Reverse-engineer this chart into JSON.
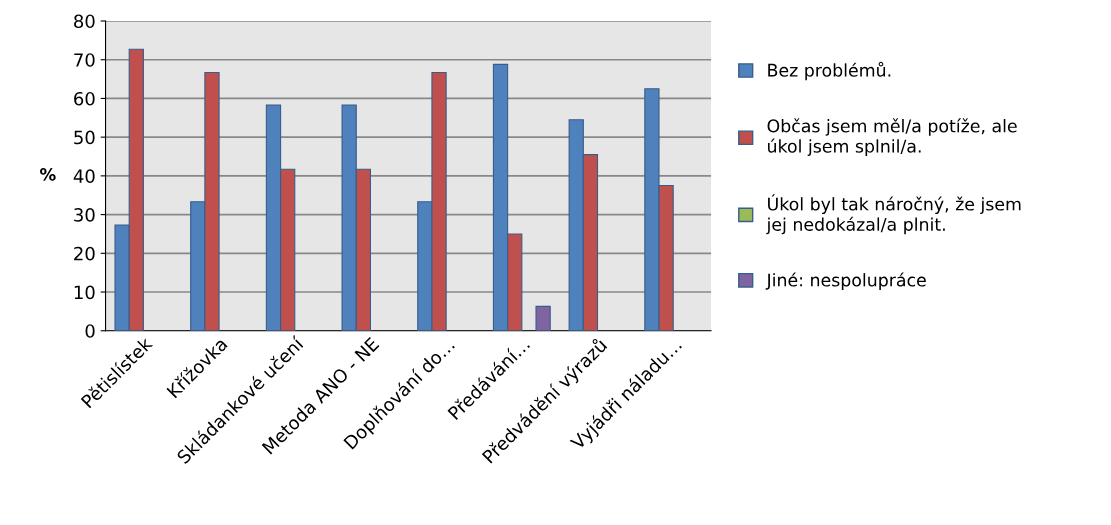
{
  "chart_data": {
    "type": "bar",
    "ylabel": "%",
    "categories": [
      "Pětislístek",
      "Křížovka",
      "Skládankové učení",
      "Metoda ANO - NE",
      "Doplňování do…",
      "Předávání…",
      "Předvádění výrazů",
      "Vyjádři náladu…"
    ],
    "series": [
      {
        "name": "Bez problémů.",
        "color": "#4f81bd",
        "values": [
          27.3,
          33.3,
          58.3,
          58.3,
          33.3,
          68.8,
          54.5,
          62.5
        ]
      },
      {
        "name": "Občas jsem měl/a potíže, ale úkol jsem splnil/a.",
        "color": "#c0504d",
        "values": [
          72.7,
          66.7,
          41.7,
          41.7,
          66.7,
          25,
          45.5,
          37.5
        ]
      },
      {
        "name": "Úkol byl tak náročný, že jsem jej nedokázal/a plnit.",
        "color": "#9bbb59",
        "values": [
          null,
          null,
          null,
          null,
          null,
          null,
          null,
          null
        ]
      },
      {
        "name": "Jiné: nespolupráce",
        "color": "#8064a2",
        "values": [
          null,
          null,
          null,
          null,
          null,
          6.3,
          null,
          null
        ]
      }
    ],
    "ylim": [
      0,
      80
    ],
    "yticks": [
      0,
      10,
      20,
      30,
      40,
      50,
      60,
      70,
      80
    ],
    "grid": "y",
    "legend": "right"
  }
}
